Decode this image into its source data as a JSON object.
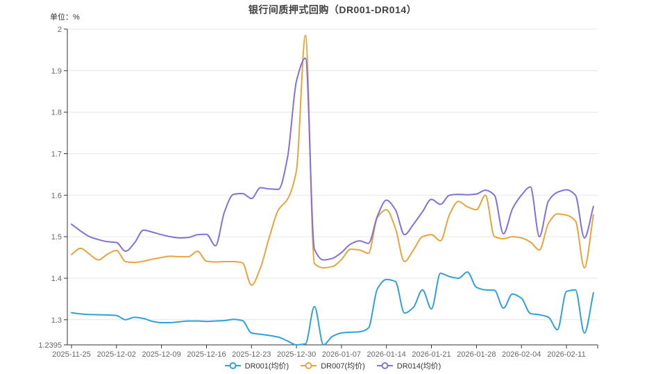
{
  "title": "银行间质押式回购（DR001-DR014）",
  "unit_label": "单位：%",
  "colors": {
    "dr001": "#32A0D8",
    "dr007": "#E6A53C",
    "dr014": "#8370D8",
    "axis": "#333333",
    "grid": "#E6E6E6",
    "tick_label": "#666666",
    "title_text": "#404040"
  },
  "chart_data": {
    "type": "line",
    "smooth": true,
    "grid": true,
    "legend_position": "bottom",
    "ylim": [
      1.2395,
      2
    ],
    "y_ticks": [
      2,
      1.9,
      1.8,
      1.7,
      1.6,
      1.5,
      1.4,
      1.3,
      1.2395
    ],
    "x_tick_every": 5,
    "x_tick_labels": [
      "2025-11-25",
      "2025-12-02",
      "2025-12-09",
      "2025-12-16",
      "2025-12-23",
      "2025-12-30",
      "2026-01-07",
      "2026-01-14",
      "2026-01-21",
      "2026-01-28",
      "2026-02-04",
      "2026-02-11"
    ],
    "x_dates": [
      "2025-11-25",
      "2025-11-26",
      "2025-11-27",
      "2025-11-28",
      "2025-12-01",
      "2025-12-02",
      "2025-12-03",
      "2025-12-04",
      "2025-12-05",
      "2025-12-08",
      "2025-12-09",
      "2025-12-10",
      "2025-12-11",
      "2025-12-12",
      "2025-12-15",
      "2025-12-16",
      "2025-12-17",
      "2025-12-18",
      "2025-12-19",
      "2025-12-22",
      "2025-12-23",
      "2025-12-24",
      "2025-12-25",
      "2025-12-26",
      "2025-12-29",
      "2025-12-30",
      "2025-12-31",
      "2026-01-02",
      "2026-01-05",
      "2026-01-06",
      "2026-01-07",
      "2026-01-08",
      "2026-01-09",
      "2026-01-12",
      "2026-01-13",
      "2026-01-14",
      "2026-01-15",
      "2026-01-16",
      "2026-01-19",
      "2026-01-20",
      "2026-01-21",
      "2026-01-22",
      "2026-01-23",
      "2026-01-26",
      "2026-01-27",
      "2026-01-28",
      "2026-01-29",
      "2026-01-30",
      "2026-02-02",
      "2026-02-03",
      "2026-02-04",
      "2026-02-05",
      "2026-02-06",
      "2026-02-09",
      "2026-02-10",
      "2026-02-11",
      "2026-02-12",
      "2026-02-13",
      "2026-02-16"
    ],
    "series": [
      {
        "name": "DR001(均价)",
        "color": "#32A0D8",
        "values": [
          1.317,
          1.314,
          1.3125,
          1.312,
          1.3115,
          1.31,
          1.3,
          1.306,
          1.303,
          1.296,
          1.293,
          1.293,
          1.295,
          1.297,
          1.297,
          1.296,
          1.297,
          1.298,
          1.301,
          1.298,
          1.268,
          1.265,
          1.262,
          1.258,
          1.249,
          1.2395,
          1.242,
          1.332,
          1.2395,
          1.26,
          1.268,
          1.27,
          1.271,
          1.28,
          1.375,
          1.397,
          1.392,
          1.316,
          1.33,
          1.372,
          1.326,
          1.412,
          1.404,
          1.4,
          1.415,
          1.378,
          1.372,
          1.371,
          1.328,
          1.362,
          1.352,
          1.315,
          1.312,
          1.306,
          1.276,
          1.368,
          1.372,
          1.268,
          1.365
        ]
      },
      {
        "name": "DR007(均价)",
        "color": "#E6A53C",
        "values": [
          1.457,
          1.472,
          1.458,
          1.444,
          1.458,
          1.467,
          1.44,
          1.438,
          1.441,
          1.446,
          1.45,
          1.453,
          1.452,
          1.452,
          1.465,
          1.441,
          1.439,
          1.44,
          1.44,
          1.437,
          1.383,
          1.425,
          1.5,
          1.565,
          1.59,
          1.66,
          1.985,
          1.435,
          1.425,
          1.428,
          1.445,
          1.47,
          1.468,
          1.46,
          1.547,
          1.565,
          1.52,
          1.44,
          1.468,
          1.5,
          1.505,
          1.49,
          1.553,
          1.585,
          1.572,
          1.565,
          1.6,
          1.5,
          1.495,
          1.5,
          1.497,
          1.487,
          1.468,
          1.532,
          1.555,
          1.552,
          1.538,
          1.425,
          1.553
        ]
      },
      {
        "name": "DR014(均价)",
        "color": "#8370D8",
        "values": [
          1.53,
          1.514,
          1.5,
          1.493,
          1.488,
          1.486,
          1.465,
          1.485,
          1.516,
          1.511,
          1.505,
          1.5,
          1.497,
          1.498,
          1.505,
          1.506,
          1.478,
          1.56,
          1.602,
          1.604,
          1.592,
          1.618,
          1.615,
          1.614,
          1.69,
          1.875,
          1.93,
          1.47,
          1.444,
          1.448,
          1.462,
          1.482,
          1.49,
          1.484,
          1.55,
          1.588,
          1.565,
          1.505,
          1.53,
          1.56,
          1.59,
          1.578,
          1.6,
          1.602,
          1.601,
          1.603,
          1.612,
          1.6,
          1.507,
          1.567,
          1.6,
          1.62,
          1.5,
          1.586,
          1.607,
          1.613,
          1.6,
          1.497,
          1.573
        ]
      }
    ]
  }
}
